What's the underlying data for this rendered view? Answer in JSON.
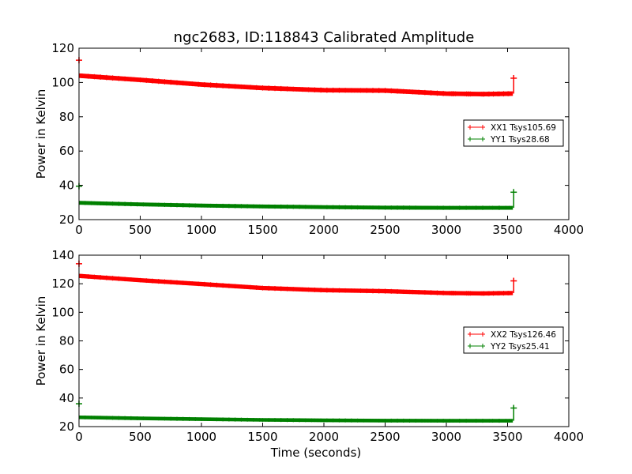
{
  "title": "ngc2683, ID:118843 Calibrated Amplitude",
  "chart_data": [
    {
      "type": "line",
      "title": "ngc2683, ID:118843 Calibrated Amplitude",
      "xlabel": "",
      "ylabel": "Power in Kelvin",
      "xlim": [
        0,
        4000
      ],
      "ylim": [
        20,
        120
      ],
      "xticks": [
        0,
        500,
        1000,
        1500,
        2000,
        2500,
        3000,
        3500,
        4000
      ],
      "yticks": [
        20,
        40,
        60,
        80,
        100,
        120
      ],
      "grid": false,
      "legend_position": "right",
      "series": [
        {
          "name": "XX1 Tsys105.69",
          "color": "#ff0000",
          "x": [
            0,
            500,
            1000,
            1500,
            2000,
            2500,
            3000,
            3300,
            3540
          ],
          "y": [
            104,
            101.5,
            98.8,
            96.8,
            95.5,
            95.3,
            93.5,
            93.2,
            93.5
          ],
          "band": 2.2,
          "start_marker": [
            0,
            113
          ],
          "end_marker": [
            3550,
            102.5
          ]
        },
        {
          "name": "YY1 Tsys28.68",
          "color": "#008000",
          "x": [
            0,
            500,
            1000,
            1500,
            2000,
            2500,
            3000,
            3540
          ],
          "y": [
            29.8,
            28.9,
            28.2,
            27.7,
            27.3,
            27.0,
            26.9,
            26.9
          ],
          "band": 1.8,
          "start_marker": [
            0,
            39.5
          ],
          "end_marker": [
            3550,
            36
          ]
        }
      ]
    },
    {
      "type": "line",
      "title": "",
      "xlabel": "Time (seconds)",
      "ylabel": "Power in Kelvin",
      "xlim": [
        0,
        4000
      ],
      "ylim": [
        20,
        140
      ],
      "xticks": [
        0,
        500,
        1000,
        1500,
        2000,
        2500,
        3000,
        3500,
        4000
      ],
      "yticks": [
        20,
        40,
        60,
        80,
        100,
        120,
        140
      ],
      "grid": false,
      "legend_position": "right",
      "series": [
        {
          "name": "XX2 Tsys126.46",
          "color": "#ff0000",
          "x": [
            0,
            500,
            1000,
            1500,
            2000,
            2500,
            3000,
            3300,
            3540
          ],
          "y": [
            125.5,
            122.5,
            119.8,
            117.0,
            115.5,
            114.8,
            113.5,
            113.2,
            113.5
          ],
          "band": 2.4,
          "start_marker": [
            0,
            134
          ],
          "end_marker": [
            3550,
            122
          ]
        },
        {
          "name": "YY2 Tsys25.41",
          "color": "#008000",
          "x": [
            0,
            500,
            1000,
            1500,
            2000,
            2500,
            3000,
            3540
          ],
          "y": [
            26.5,
            25.8,
            25.2,
            24.7,
            24.4,
            24.2,
            24.1,
            24.1
          ],
          "band": 2.0,
          "start_marker": [
            0,
            36
          ],
          "end_marker": [
            3550,
            33
          ]
        }
      ]
    }
  ]
}
